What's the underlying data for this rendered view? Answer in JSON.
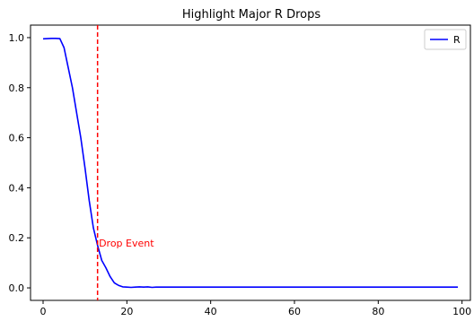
{
  "chart_data": {
    "type": "line",
    "title": "Highlight Major R Drops",
    "xlabel": "",
    "ylabel": "",
    "xlim": [
      -3,
      102
    ],
    "ylim": [
      -0.05,
      1.05
    ],
    "x_ticks": [
      0,
      20,
      40,
      60,
      80,
      100
    ],
    "y_ticks": [
      0.0,
      0.2,
      0.4,
      0.6,
      0.8,
      1.0
    ],
    "x_tick_labels": [
      "0",
      "20",
      "40",
      "60",
      "80",
      "100"
    ],
    "y_tick_labels": [
      "0.0",
      "0.2",
      "0.4",
      "0.6",
      "0.8",
      "1.0"
    ],
    "grid": false,
    "legend": {
      "position": "top-right",
      "entries": [
        "R"
      ]
    },
    "series": [
      {
        "name": "R",
        "color": "#0000ff",
        "x": [
          0,
          1,
          2,
          3,
          4,
          5,
          6,
          7,
          8,
          9,
          10,
          11,
          12,
          13,
          14,
          15,
          16,
          17,
          18,
          19,
          20,
          21,
          22,
          23,
          24,
          25,
          26,
          27,
          28,
          30,
          40,
          50,
          60,
          70,
          80,
          90,
          99
        ],
        "y": [
          0.995,
          0.996,
          0.997,
          0.997,
          0.996,
          0.96,
          0.88,
          0.8,
          0.7,
          0.6,
          0.48,
          0.35,
          0.24,
          0.17,
          0.11,
          0.08,
          0.045,
          0.02,
          0.01,
          0.004,
          0.003,
          0.002,
          0.003,
          0.004,
          0.003,
          0.004,
          0.002,
          0.003,
          0.003,
          0.003,
          0.003,
          0.003,
          0.003,
          0.003,
          0.003,
          0.003,
          0.003
        ]
      }
    ],
    "annotations": [
      {
        "type": "vline",
        "x": 13,
        "color": "#ff0000",
        "style": "dashed"
      },
      {
        "type": "text",
        "text": "Drop Event",
        "x": 13.3,
        "y": 0.18,
        "color": "#ff0000"
      }
    ]
  }
}
